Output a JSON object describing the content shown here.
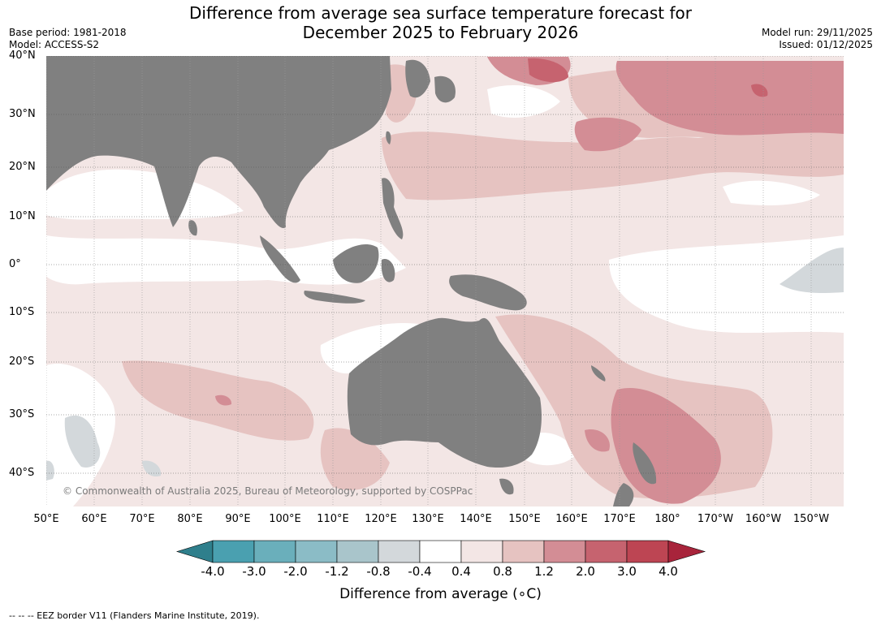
{
  "title_line1": "Difference from average sea surface temperature forecast for",
  "title_line2": "December 2025 to February 2026",
  "base_period": "Base period: 1981-2018",
  "model": "Model: ACCESS-S2",
  "model_run": "Model run: 29/11/2025",
  "issued": "Issued: 01/12/2025",
  "copyright": "© Commonwealth of Australia 2025, Bureau of Meteorology, supported by COSPPac",
  "lat_labels": [
    "40°N",
    "30°N",
    "20°N",
    "10°N",
    "0°",
    "10°S",
    "20°S",
    "30°S",
    "40°S"
  ],
  "lon_labels": [
    "50°E",
    "60°E",
    "70°E",
    "80°E",
    "90°E",
    "100°E",
    "110°E",
    "120°E",
    "130°E",
    "140°E",
    "150°E",
    "160°E",
    "170°E",
    "180°",
    "170°W",
    "160°W",
    "150°W"
  ],
  "colorbar": {
    "title": "Difference from average (∘C)",
    "tick_labels": [
      "-4.0",
      "-3.0",
      "-2.0",
      "-1.2",
      "-0.8",
      "-0.4",
      "0.4",
      "0.8",
      "1.2",
      "2.0",
      "3.0",
      "4.0"
    ],
    "colors": [
      "#2f7f8c",
      "#4aa0b0",
      "#6aafbb",
      "#8bbcc6",
      "#a9c5cb",
      "#d3d8db",
      "#ffffff",
      "#f3e6e5",
      "#e6c3c1",
      "#d38d95",
      "#c6636f",
      "#bd4553",
      "#a8243b"
    ]
  },
  "legend_footnote": "--  --  -- EEZ border V11 (Flanders Marine Institute, 2019).",
  "land_color": "#808080"
}
